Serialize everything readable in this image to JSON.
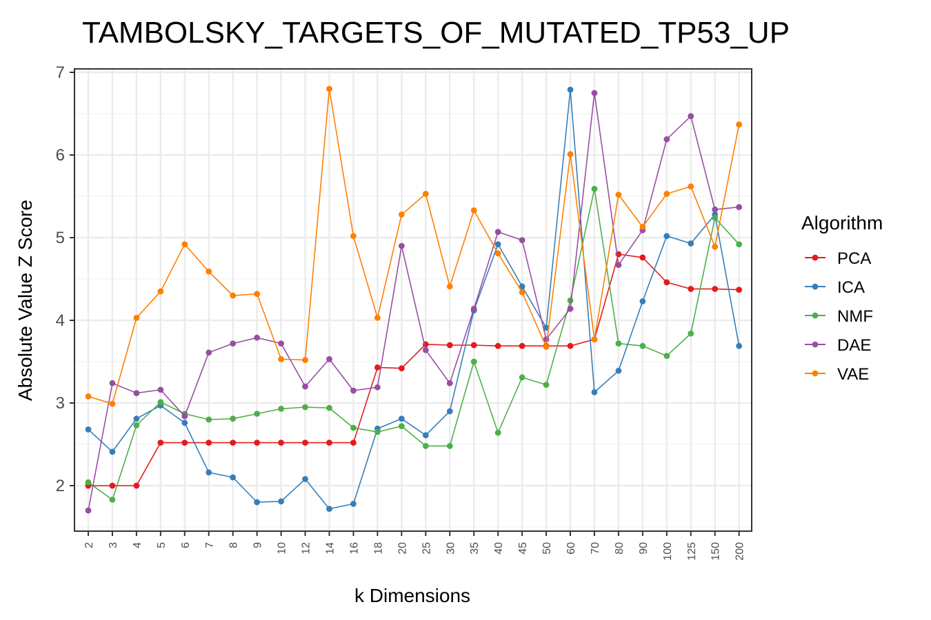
{
  "chart_data": {
    "type": "line",
    "title": "TAMBOLSKY_TARGETS_OF_MUTATED_TP53_UP",
    "xlabel": "k Dimensions",
    "ylabel": "Absolute Value Z Score",
    "categories": [
      "2",
      "3",
      "4",
      "5",
      "6",
      "7",
      "8",
      "9",
      "10",
      "12",
      "14",
      "16",
      "18",
      "20",
      "25",
      "30",
      "35",
      "40",
      "45",
      "50",
      "60",
      "70",
      "80",
      "90",
      "100",
      "125",
      "150",
      "200"
    ],
    "ylim": [
      1.45,
      7.0
    ],
    "yticks": [
      2,
      3,
      4,
      5,
      6,
      7
    ],
    "grid": true,
    "legend_title": "Algorithm",
    "legend_position": "right",
    "series": [
      {
        "name": "PCA",
        "color": "#E41A1C",
        "values": [
          2.0,
          2.0,
          2.0,
          2.52,
          2.52,
          2.52,
          2.52,
          2.52,
          2.52,
          2.52,
          2.52,
          2.52,
          3.43,
          3.42,
          3.71,
          3.7,
          3.7,
          3.69,
          3.69,
          3.69,
          3.69,
          3.77,
          4.8,
          4.76,
          4.46,
          4.38,
          4.38,
          4.37
        ]
      },
      {
        "name": "ICA",
        "color": "#377EB8",
        "values": [
          2.68,
          2.41,
          2.81,
          2.97,
          2.76,
          2.16,
          2.1,
          1.8,
          1.81,
          2.08,
          1.72,
          1.78,
          2.69,
          2.81,
          2.61,
          2.9,
          4.12,
          4.92,
          4.41,
          3.91,
          6.79,
          3.13,
          3.39,
          4.23,
          5.02,
          4.93,
          5.28,
          3.69
        ]
      },
      {
        "name": "NMF",
        "color": "#4DAF4A",
        "values": [
          2.04,
          1.83,
          2.73,
          3.01,
          2.87,
          2.8,
          2.81,
          2.87,
          2.93,
          2.95,
          2.94,
          2.7,
          2.65,
          2.72,
          2.48,
          2.48,
          3.5,
          2.64,
          3.31,
          3.22,
          4.24,
          5.59,
          3.72,
          3.69,
          3.57,
          3.84,
          5.24,
          4.92
        ]
      },
      {
        "name": "DAE",
        "color": "#984EA3",
        "values": [
          1.7,
          3.24,
          3.12,
          3.16,
          2.84,
          3.61,
          3.72,
          3.79,
          3.72,
          3.2,
          3.53,
          3.15,
          3.19,
          4.9,
          3.64,
          3.24,
          4.14,
          5.07,
          4.97,
          3.77,
          4.14,
          6.75,
          4.67,
          5.09,
          6.19,
          6.47,
          5.34,
          5.37
        ]
      },
      {
        "name": "VAE",
        "color": "#FF7F00",
        "values": [
          3.08,
          2.99,
          4.03,
          4.35,
          4.92,
          4.59,
          4.3,
          4.32,
          3.53,
          3.52,
          6.8,
          5.02,
          4.03,
          5.28,
          5.53,
          4.41,
          5.33,
          4.81,
          4.34,
          3.68,
          6.01,
          3.77,
          5.52,
          5.13,
          5.53,
          5.62,
          4.89,
          6.37
        ]
      }
    ]
  }
}
